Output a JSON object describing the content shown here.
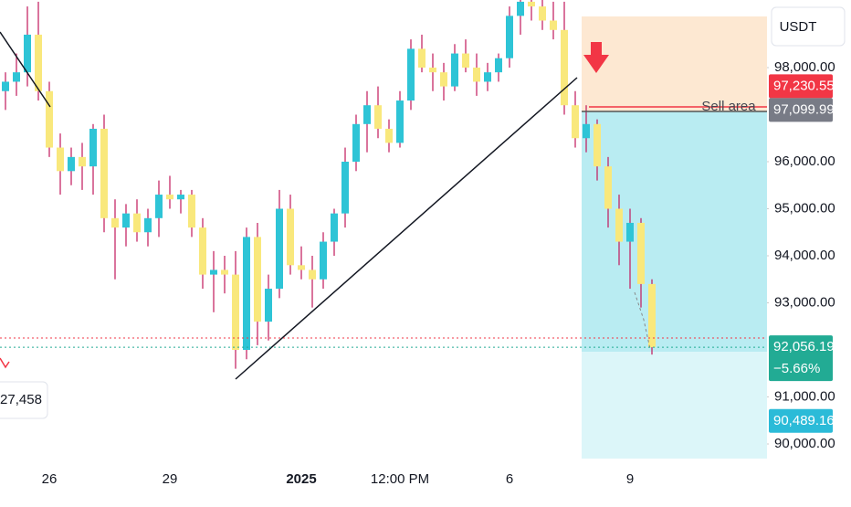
{
  "chart_data": {
    "type": "candlestick",
    "categories": [
      null,
      null,
      null,
      null,
      "26",
      null,
      null,
      null,
      null,
      null,
      null,
      null,
      null,
      null,
      null,
      "29",
      null,
      null,
      null,
      null,
      null,
      null,
      null,
      null,
      null,
      null,
      null,
      "2025",
      null,
      null,
      null,
      null,
      null,
      null,
      null,
      null,
      "12:00 PM",
      null,
      null,
      null,
      null,
      null,
      null,
      null,
      null,
      null,
      "6",
      null,
      null,
      null,
      null,
      null,
      null,
      null,
      null,
      null,
      null,
      "9",
      null,
      null
    ],
    "open": [
      97500,
      97700,
      97900,
      98700,
      97500,
      96300,
      95800,
      96100,
      95900,
      96700,
      94800,
      94600,
      94900,
      94500,
      94800,
      95300,
      95200,
      95300,
      94600,
      93600,
      93700,
      93600,
      92000,
      94400,
      92600,
      93300,
      95000,
      93800,
      93700,
      93500,
      94300,
      94900,
      96000,
      96800,
      97200,
      96700,
      96400,
      97300,
      98400,
      98000,
      97900,
      97600,
      98300,
      98000,
      97700,
      97900,
      98200,
      99100,
      99400,
      99300,
      99000,
      98800,
      97200,
      96500,
      96800,
      95900,
      95000,
      94300,
      94700,
      93400
    ],
    "high": [
      97900,
      98300,
      99300,
      99400,
      97700,
      96600,
      96300,
      96400,
      96800,
      97000,
      95200,
      95100,
      95200,
      95000,
      95600,
      95700,
      95400,
      95400,
      94800,
      94100,
      94000,
      94100,
      94600,
      94700,
      93600,
      95400,
      95300,
      94200,
      94000,
      94500,
      95000,
      96300,
      97000,
      97500,
      97600,
      96900,
      97500,
      98600,
      98700,
      98300,
      98100,
      98500,
      98600,
      98300,
      98100,
      98300,
      99300,
      99500,
      99500,
      99450,
      99400,
      99400,
      97500,
      97200,
      96900,
      96100,
      95300,
      95000,
      94800,
      93500
    ],
    "low": [
      97100,
      97400,
      97600,
      97300,
      96100,
      95300,
      95500,
      95400,
      95300,
      94500,
      93500,
      94200,
      94300,
      94200,
      94400,
      95000,
      94900,
      94400,
      93300,
      92800,
      93200,
      91600,
      91800,
      92100,
      92200,
      93100,
      93600,
      93500,
      92900,
      93300,
      94000,
      94600,
      95800,
      96200,
      96500,
      96200,
      96300,
      97100,
      97900,
      97500,
      97300,
      97500,
      97900,
      97400,
      97500,
      97700,
      98000,
      98700,
      99000,
      98800,
      98600,
      97000,
      96300,
      96200,
      95600,
      94600,
      93800,
      93300,
      92900,
      91900
    ],
    "close": [
      97700,
      97900,
      98700,
      97500,
      96300,
      95800,
      96100,
      95900,
      96700,
      94800,
      94600,
      94900,
      94500,
      94800,
      95300,
      95200,
      95300,
      94600,
      93600,
      93700,
      93600,
      92000,
      94400,
      92600,
      93300,
      95000,
      93800,
      93700,
      93500,
      94300,
      94900,
      96000,
      96800,
      97200,
      96700,
      96400,
      97300,
      98400,
      98000,
      97900,
      97600,
      98300,
      98000,
      97700,
      97900,
      98200,
      99100,
      99400,
      99300,
      99000,
      98800,
      97200,
      96500,
      96800,
      95900,
      95000,
      94300,
      94700,
      93400,
      92056.19
    ],
    "up_color": "#2ec4d6",
    "down_color": "#f9e87c",
    "wick_color": "#c2185b",
    "ylim": [
      89534,
      99437
    ],
    "yticks": [
      {
        "value": 98000,
        "label": "98,000.00"
      },
      {
        "value": 96000,
        "label": "96,000.00"
      },
      {
        "value": 95000,
        "label": "95,000.00"
      },
      {
        "value": 94000,
        "label": "94,000.00"
      },
      {
        "value": 93000,
        "label": "93,000.00"
      },
      {
        "value": 91000,
        "label": "91,000.00"
      },
      {
        "value": 90000,
        "label": "90,000.00"
      }
    ],
    "price_labels": [
      {
        "value": 97230.55,
        "label": "97,230.55",
        "color": "#f23645"
      },
      {
        "value": 97099.99,
        "label": "97,099.99",
        "color": "#787b86"
      },
      {
        "value": 92056.19,
        "label": "92,056.19",
        "sublabel": "−5.66%",
        "color": "#22ab94"
      },
      {
        "value": 90489.16,
        "label": "90,489.16",
        "color": "#2bbbd8"
      }
    ],
    "currency": "USDT",
    "annotation": "Sell area",
    "left_bubble": "27,458"
  }
}
